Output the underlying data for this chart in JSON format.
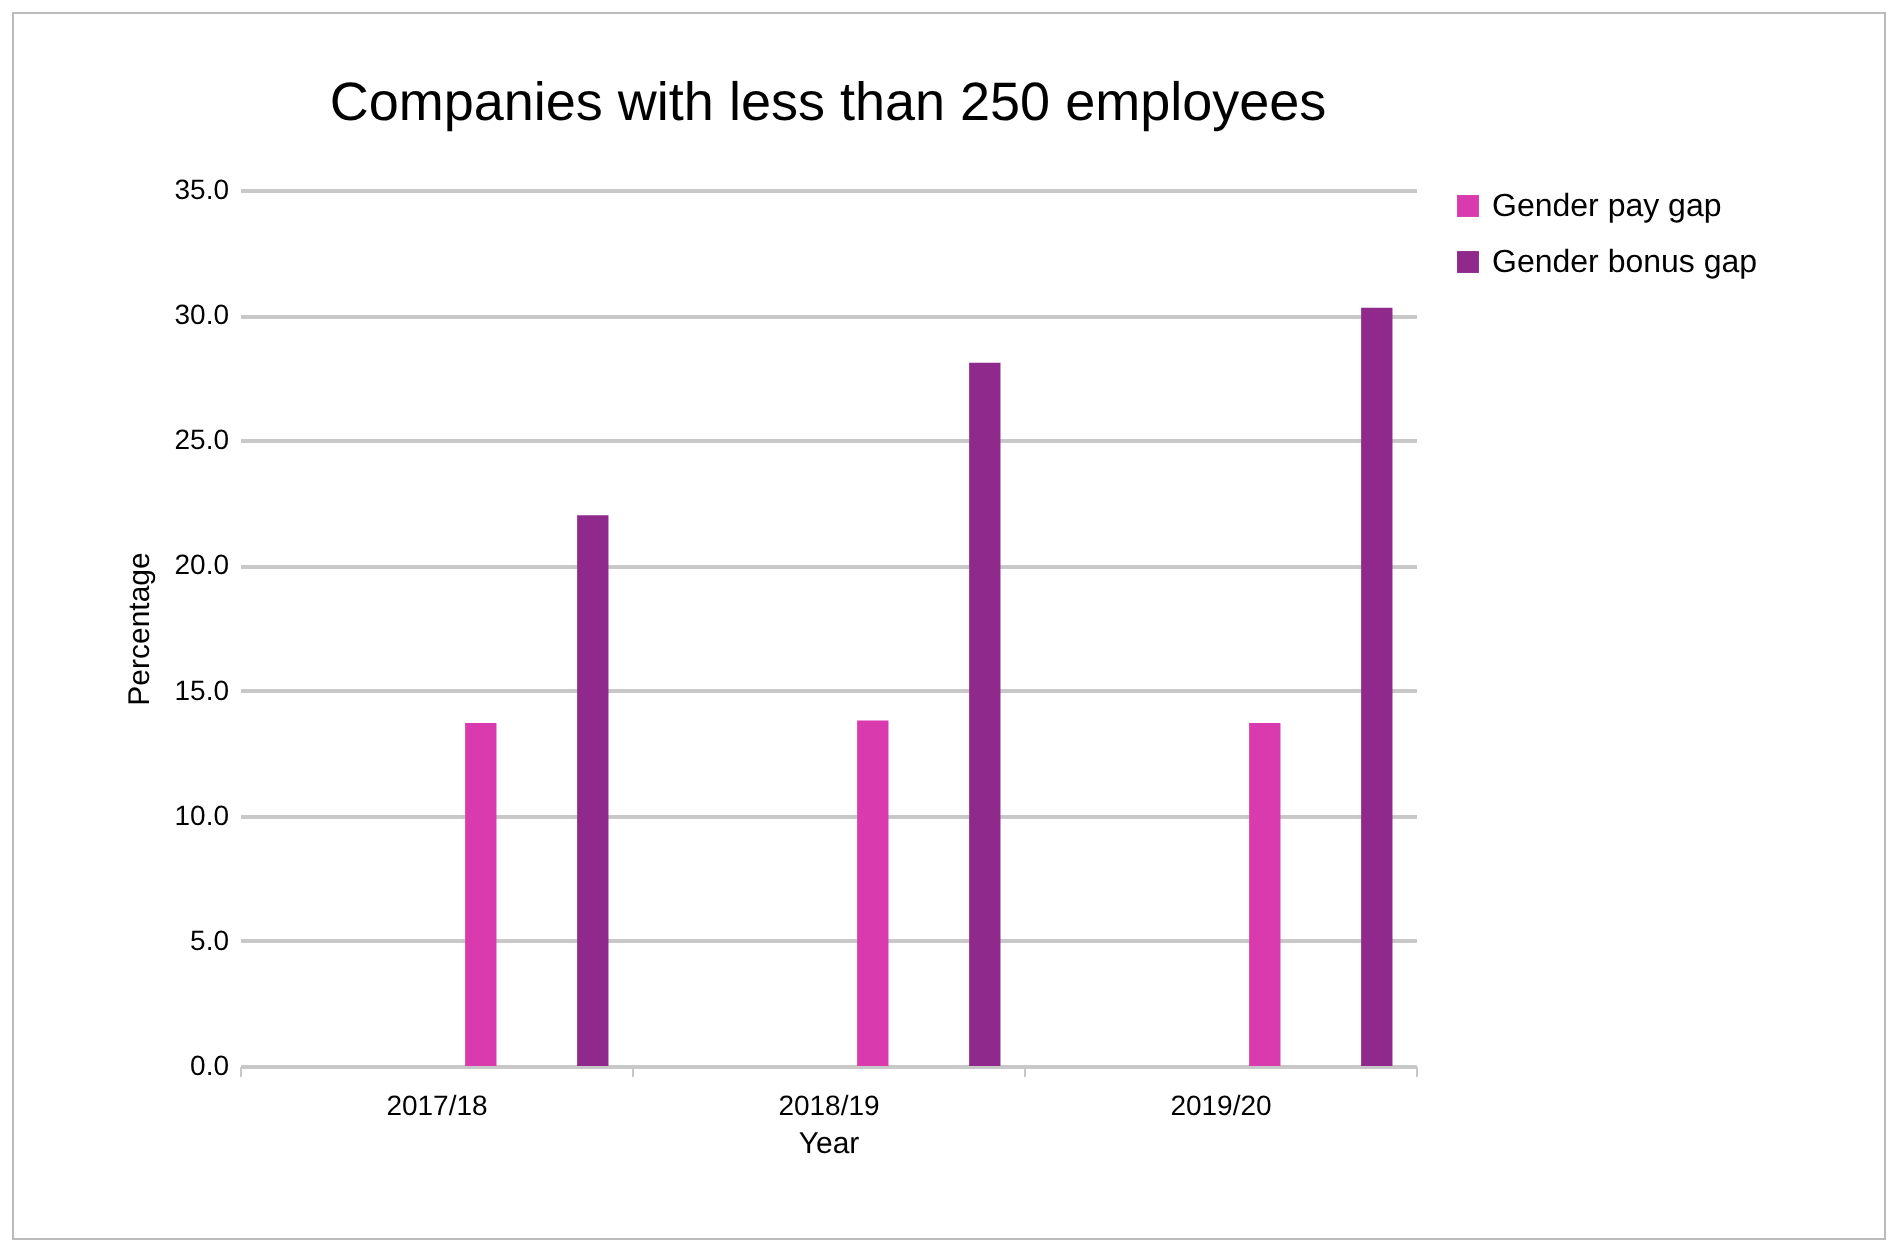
{
  "chart_data": {
    "type": "bar",
    "title": "Companies with less than 250 employees",
    "xlabel": "Year",
    "ylabel": "Percentage",
    "categories": [
      "2017/18",
      "2018/19",
      "2019/20"
    ],
    "series": [
      {
        "name": "Gender pay gap",
        "color": "#d93bae",
        "values": [
          13.7,
          13.8,
          13.7
        ]
      },
      {
        "name": "Gender bonus gap",
        "color": "#8f2a8c",
        "values": [
          22.0,
          28.1,
          30.3
        ]
      }
    ],
    "ylim": [
      0,
      35
    ],
    "yticks": [
      {
        "value": 0,
        "label": "0.0"
      },
      {
        "value": 5,
        "label": "5.0"
      },
      {
        "value": 10,
        "label": "10.0"
      },
      {
        "value": 15,
        "label": "15.0"
      },
      {
        "value": 20,
        "label": "20.0"
      },
      {
        "value": 25,
        "label": "25.0"
      },
      {
        "value": 30,
        "label": "30.0"
      },
      {
        "value": 35,
        "label": "35.0"
      }
    ],
    "grid": "y",
    "legend": "right"
  }
}
